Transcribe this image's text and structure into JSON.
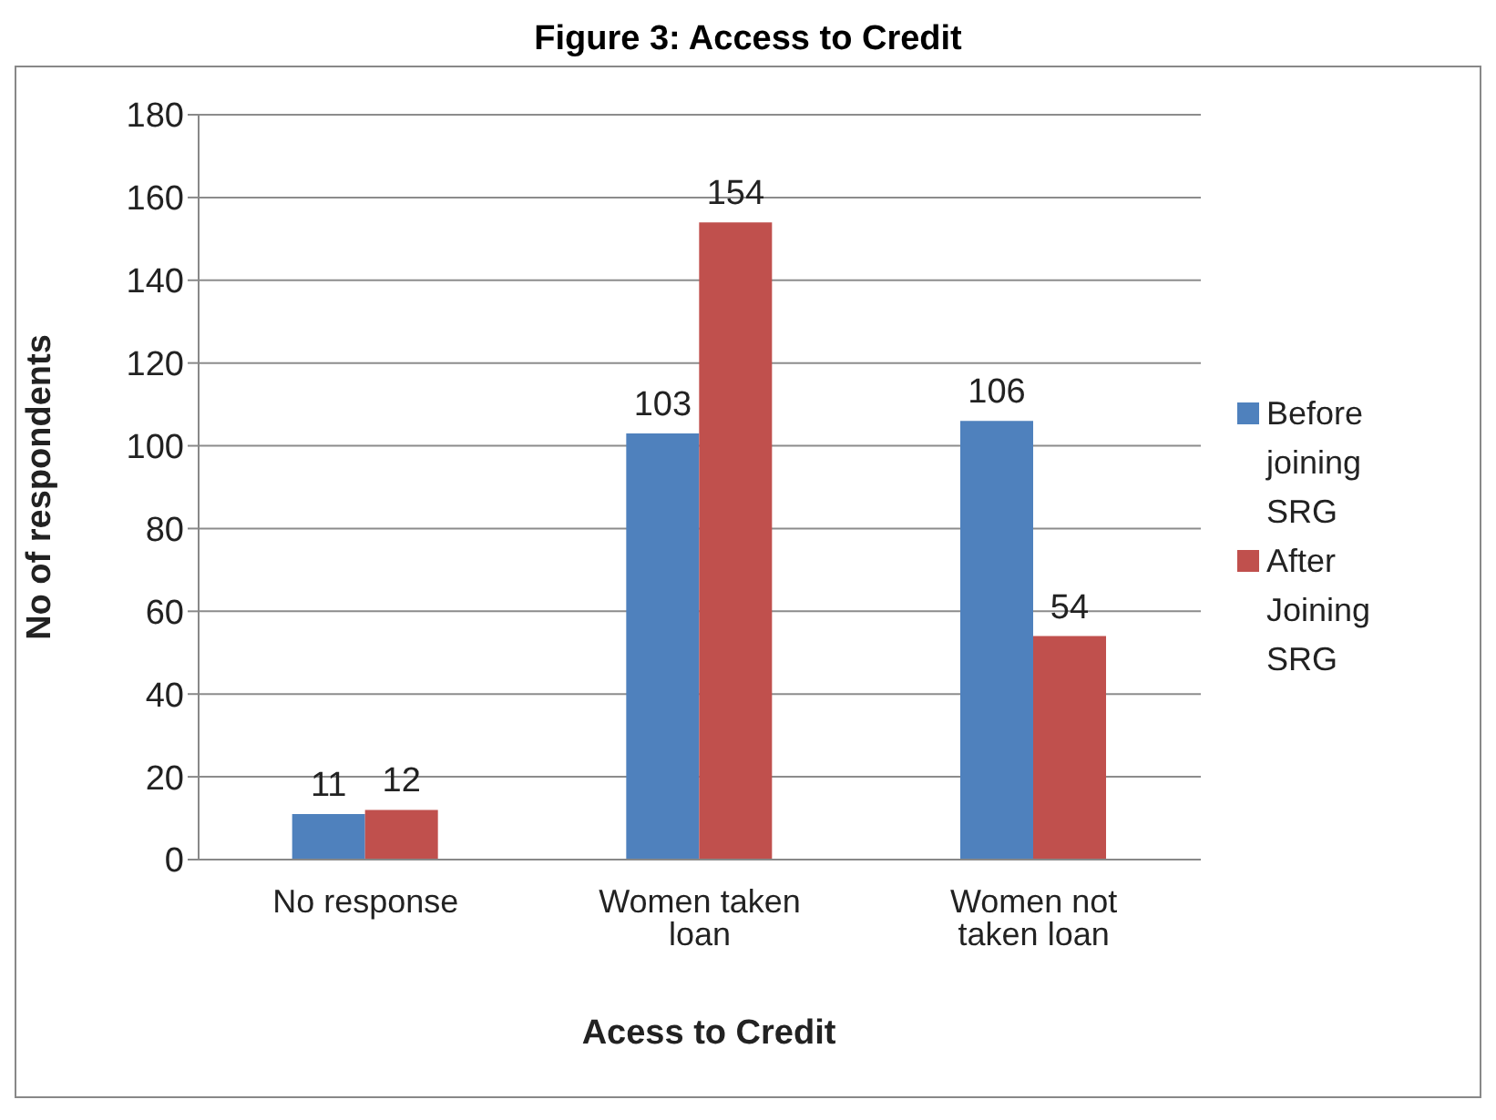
{
  "chart_data": {
    "type": "bar",
    "title": "Figure 3: Access to Credit",
    "xlabel": "Acess to Credit",
    "ylabel": "No of respondents",
    "categories": [
      "No response",
      "Women taken loan",
      "Women not taken loan"
    ],
    "series": [
      {
        "name": "Before joining SRG",
        "color": "#4f81bd",
        "values": [
          11,
          103,
          106
        ]
      },
      {
        "name": "After Joining SRG",
        "color": "#c0504d",
        "values": [
          12,
          154,
          54
        ]
      }
    ],
    "ylim": [
      0,
      180
    ],
    "yticks": [
      0,
      20,
      40,
      60,
      80,
      100,
      120,
      140,
      160,
      180
    ],
    "grid": "y",
    "legend": "right",
    "data_labels": true
  }
}
